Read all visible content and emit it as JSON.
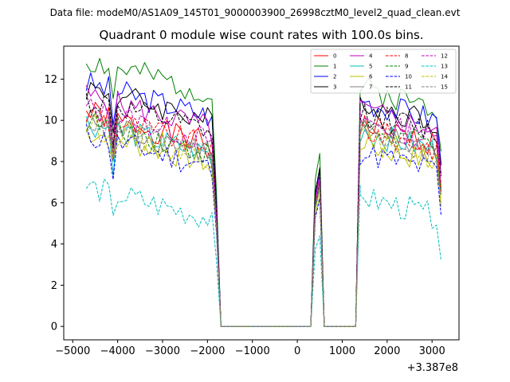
{
  "figure": {
    "suptitle": "Data file: modeM0/AS1A09_145T01_9000003900_26998cztM0_level2_quad_clean.evt"
  },
  "chart_data": {
    "type": "line",
    "title": "Quadrant 0 module wise count rates with 100.0s bins.",
    "xlabel": "",
    "ylabel": "",
    "offset_label": "+3.387e8",
    "xlim": [
      -5200,
      3600
    ],
    "ylim": [
      -0.65,
      13.6
    ],
    "xticks": [
      -5000,
      -4000,
      -3000,
      -2000,
      -1000,
      0,
      1000,
      2000,
      3000
    ],
    "xtick_labels": [
      "−5000",
      "−4000",
      "−3000",
      "−2000",
      "−1000",
      "0",
      "1000",
      "2000",
      "3000"
    ],
    "yticks": [
      0,
      2,
      4,
      6,
      8,
      10,
      12
    ],
    "ytick_labels": [
      "0",
      "2",
      "4",
      "6",
      "8",
      "10",
      "12"
    ],
    "grid": false,
    "legend_position": "top-right",
    "legend_columns": 4,
    "x_segments": [
      {
        "start": -4700,
        "step": 100,
        "count": 30
      },
      {
        "start": -1700,
        "step": 100,
        "count": 20
      },
      {
        "start": 300,
        "step": 100,
        "count": 4
      },
      {
        "start": 600,
        "step": 100,
        "count": 9
      },
      {
        "start": 1400,
        "step": 100,
        "count": 19
      }
    ],
    "series": [
      {
        "name": "0",
        "color": "#ff0000",
        "dash": "solid",
        "base": 9.4,
        "post": 9.3,
        "peak": 7.0,
        "seed": 1
      },
      {
        "name": "1",
        "color": "#008000",
        "dash": "solid",
        "base": 11.9,
        "post": 11.1,
        "peak": 8.4,
        "seed": 2
      },
      {
        "name": "2",
        "color": "#0000ff",
        "dash": "solid",
        "base": 10.8,
        "post": 10.5,
        "peak": 7.4,
        "seed": 3
      },
      {
        "name": "3",
        "color": "#000000",
        "dash": "solid",
        "base": 10.6,
        "post": 10.4,
        "peak": 7.7,
        "seed": 4
      },
      {
        "name": "4",
        "color": "#bf00bf",
        "dash": "solid",
        "base": 10.2,
        "post": 10.0,
        "peak": 7.3,
        "seed": 5
      },
      {
        "name": "5",
        "color": "#00bfbf",
        "dash": "solid",
        "base": 8.9,
        "post": 9.0,
        "peak": 6.7,
        "seed": 6
      },
      {
        "name": "6",
        "color": "#bfbf00",
        "dash": "solid",
        "base": 8.5,
        "post": 8.4,
        "peak": 6.3,
        "seed": 7
      },
      {
        "name": "7",
        "color": "#808080",
        "dash": "solid",
        "base": 9.0,
        "post": 9.0,
        "peak": 6.8,
        "seed": 8
      },
      {
        "name": "8",
        "color": "#ff0000",
        "dash": "dashed",
        "base": 9.3,
        "post": 9.1,
        "peak": 7.0,
        "seed": 9
      },
      {
        "name": "9",
        "color": "#008000",
        "dash": "dashed",
        "base": 9.0,
        "post": 9.2,
        "peak": 6.9,
        "seed": 10
      },
      {
        "name": "10",
        "color": "#0000ff",
        "dash": "dashed",
        "base": 8.3,
        "post": 8.0,
        "peak": 6.2,
        "seed": 11
      },
      {
        "name": "11",
        "color": "#000000",
        "dash": "dashed",
        "base": 10.0,
        "post": 9.9,
        "peak": 7.6,
        "seed": 12
      },
      {
        "name": "12",
        "color": "#bf00bf",
        "dash": "dashed",
        "base": 9.6,
        "post": 9.5,
        "peak": 7.1,
        "seed": 13
      },
      {
        "name": "13",
        "color": "#00bfbf",
        "dash": "dashed",
        "base": 5.8,
        "post": 5.8,
        "peak": 4.4,
        "seed": 14
      },
      {
        "name": "14",
        "color": "#bfbf00",
        "dash": "dashed",
        "base": 8.8,
        "post": 8.6,
        "peak": 6.6,
        "seed": 15
      },
      {
        "name": "15",
        "color": "#808080",
        "dash": "dashed",
        "base": 9.0,
        "post": 8.9,
        "peak": 6.8,
        "seed": 16
      }
    ]
  }
}
